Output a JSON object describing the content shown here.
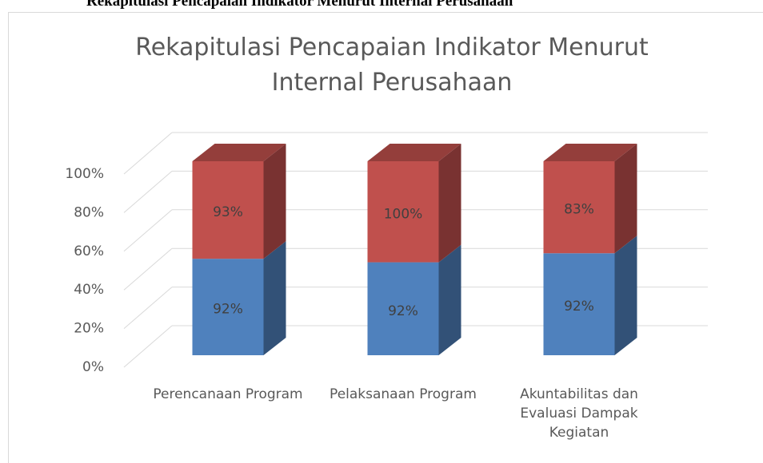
{
  "page_heading": "Rekapitulasi Pencapaian Indikator Menurut Internal Perusahaan",
  "chart_data": {
    "type": "bar3d_percent_stacked",
    "title": "Rekapitulasi Pencapaian Indikator Menurut Internal Perusahaan",
    "categories": [
      "Perencanaan Program",
      "Pelaksanaan Program",
      "Akuntabilitas dan Evaluasi Dampak Kegiatan"
    ],
    "series": [
      {
        "color": "#4f81bd",
        "values": [
          92,
          92,
          92
        ],
        "value_labels": [
          "92%",
          "92%",
          "92%"
        ]
      },
      {
        "color": "#c0504d",
        "values": [
          93,
          100,
          83
        ],
        "value_labels": [
          "93%",
          "100%",
          "83%"
        ]
      }
    ],
    "ylim": [
      0,
      100
    ],
    "yticks": [
      {
        "value": 0,
        "label": "0%"
      },
      {
        "value": 20,
        "label": "20%"
      },
      {
        "value": 40,
        "label": "40%"
      },
      {
        "value": 60,
        "label": "60%"
      },
      {
        "value": 80,
        "label": "80%"
      },
      {
        "value": 100,
        "label": "100%"
      }
    ],
    "grid": true
  }
}
